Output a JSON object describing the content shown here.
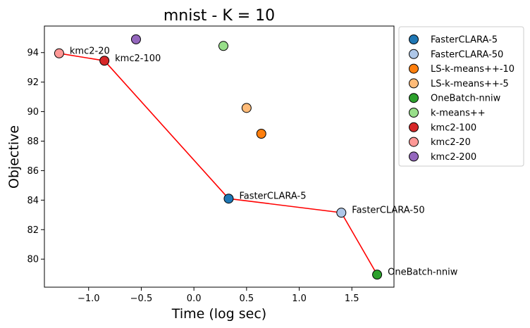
{
  "chart_data": {
    "type": "scatter",
    "title": "mnist - K = 10",
    "xlabel": "Time (log sec)",
    "ylabel": "Objective",
    "xlim": [
      -1.42,
      1.9
    ],
    "ylim": [
      78.1,
      95.8
    ],
    "xticks": [
      -1.0,
      -0.5,
      0.0,
      0.5,
      1.0,
      1.5
    ],
    "xtick_labels": [
      "−1.0",
      "−0.5",
      "0.0",
      "0.5",
      "1.0",
      "1.5"
    ],
    "yticks": [
      80,
      82,
      84,
      86,
      88,
      90,
      92,
      94
    ],
    "ytick_labels": [
      "80",
      "82",
      "84",
      "86",
      "88",
      "90",
      "92",
      "94"
    ],
    "grid": false,
    "legend_position": "outside-right",
    "series": [
      {
        "name": "FasterCLARA-5",
        "color": "#1f77b4",
        "x": 0.33,
        "y": 84.1,
        "annotated": true
      },
      {
        "name": "FasterCLARA-50",
        "color": "#aec7e8",
        "x": 1.4,
        "y": 83.15,
        "annotated": true
      },
      {
        "name": "LS-k-means++-10",
        "color": "#ff7f0e",
        "x": 0.64,
        "y": 88.5,
        "annotated": false
      },
      {
        "name": "LS-k-means++-5",
        "color": "#ffbb78",
        "x": 0.5,
        "y": 90.25,
        "annotated": false
      },
      {
        "name": "OneBatch-nniw",
        "color": "#2ca02c",
        "x": 1.74,
        "y": 78.95,
        "annotated": true
      },
      {
        "name": "k-means++",
        "color": "#98df8a",
        "x": 0.28,
        "y": 94.45,
        "annotated": false
      },
      {
        "name": "kmc2-100",
        "color": "#d62728",
        "x": -0.85,
        "y": 93.45,
        "annotated": true
      },
      {
        "name": "kmc2-20",
        "color": "#ff9896",
        "x": -1.28,
        "y": 93.95,
        "annotated": true
      },
      {
        "name": "kmc2-200",
        "color": "#9467bd",
        "x": -0.55,
        "y": 94.9,
        "annotated": false
      }
    ],
    "pareto_line": {
      "color": "#ff0000",
      "points": [
        [
          -1.28,
          93.95
        ],
        [
          -0.85,
          93.45
        ],
        [
          0.33,
          84.1
        ],
        [
          1.4,
          83.15
        ],
        [
          1.74,
          78.95
        ]
      ]
    }
  }
}
